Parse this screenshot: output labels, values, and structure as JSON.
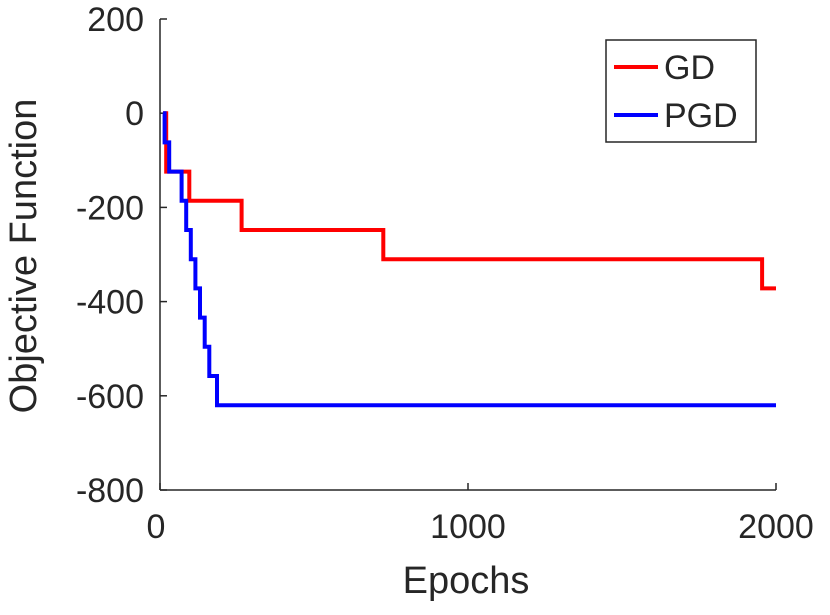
{
  "chart_data": {
    "type": "line",
    "title": "",
    "xlabel": "Epochs",
    "ylabel": "Objective Function",
    "xlim": [
      0,
      2000
    ],
    "ylim": [
      -800,
      200
    ],
    "xticks": [
      0,
      1000,
      2000
    ],
    "yticks": [
      -800,
      -600,
      -400,
      -200,
      0,
      200
    ],
    "xtick_labels": [
      "0",
      "1000",
      "2000"
    ],
    "ytick_labels": [
      "-800",
      "-600",
      "-400",
      "-200",
      "0",
      "200"
    ],
    "grid": false,
    "legend_position": "top-right",
    "series": [
      {
        "name": "GD",
        "color": "#ff0000",
        "x": [
          10,
          20,
          20,
          85,
          85,
          95,
          95,
          265,
          265,
          725,
          725,
          1955,
          1955,
          2000
        ],
        "y": [
          0,
          0,
          -124,
          -124,
          -124,
          -124,
          -186,
          -186,
          -248,
          -248,
          -310,
          -310,
          -372,
          -372
        ]
      },
      {
        "name": "PGD",
        "color": "#0000ff",
        "x": [
          10,
          15,
          15,
          30,
          30,
          45,
          45,
          70,
          70,
          85,
          85,
          100,
          100,
          115,
          115,
          130,
          130,
          145,
          145,
          160,
          160,
          175,
          175,
          185,
          185,
          2000
        ],
        "y": [
          0,
          0,
          -62,
          -62,
          -124,
          -124,
          -124,
          -124,
          -186,
          -186,
          -248,
          -248,
          -310,
          -310,
          -372,
          -372,
          -434,
          -434,
          -496,
          -496,
          -558,
          -558,
          -558,
          -558,
          -620,
          -620
        ]
      }
    ]
  }
}
